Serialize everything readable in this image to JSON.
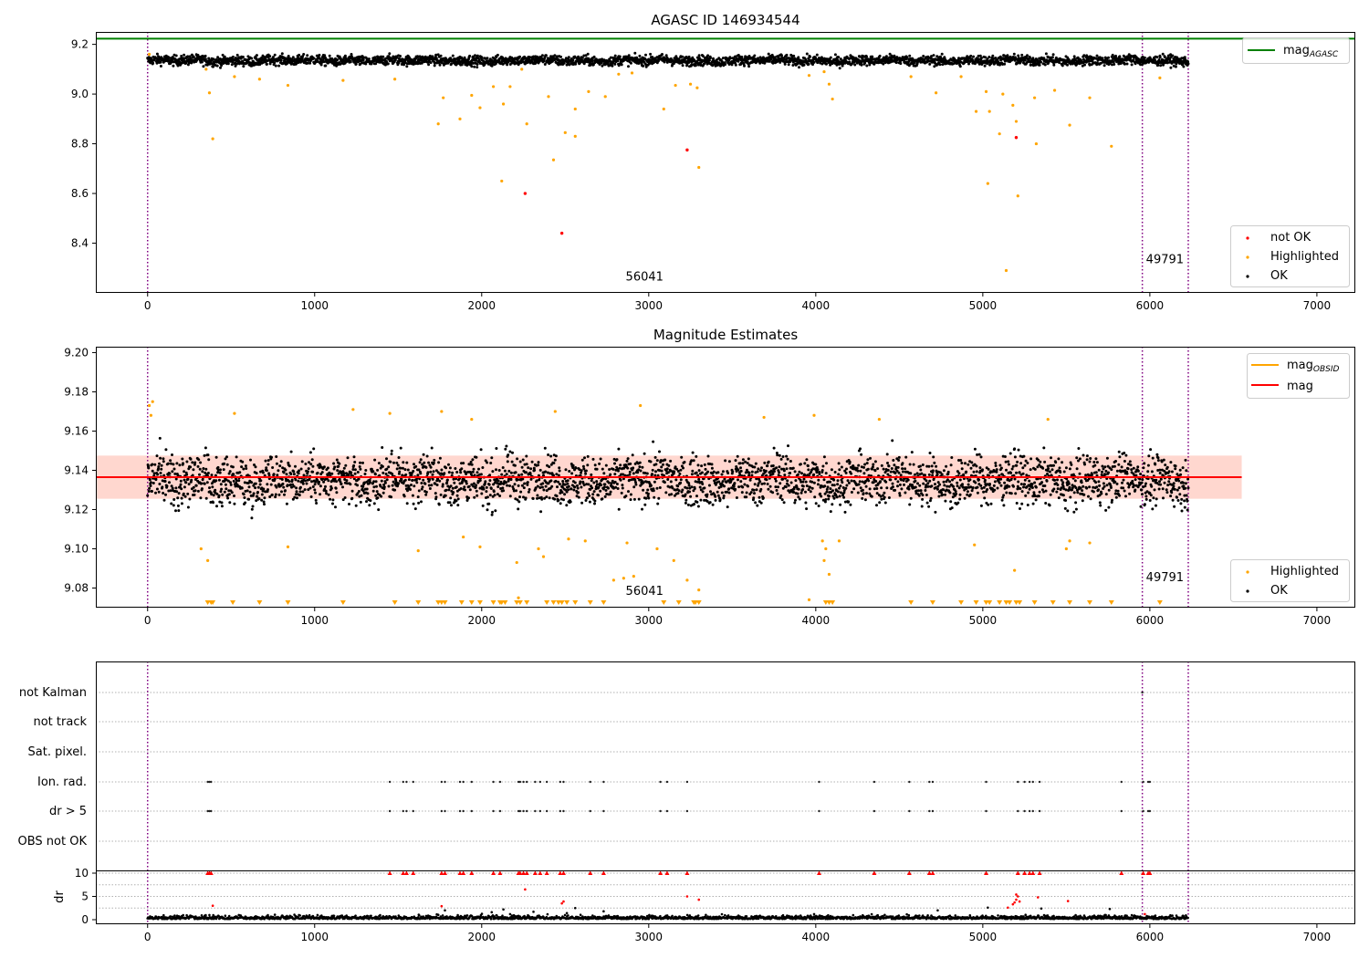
{
  "colors": {
    "ok": "#000000",
    "highlighted": "#ffa500",
    "not_ok": "#ff0000",
    "agasc_line": "#008000",
    "mean_line": "#ff0000",
    "band_fill": "#ffb6a8",
    "vline": "#800080",
    "grid": "#b0b0b0"
  },
  "chart_data": [
    {
      "type": "scatter",
      "title": "AGASC ID 146934544",
      "xlim": [
        -310,
        7230
      ],
      "ylim": [
        8.2,
        9.25
      ],
      "xticks": [
        "0",
        "1000",
        "2000",
        "3000",
        "4000",
        "5000",
        "6000",
        "7000"
      ],
      "yticks": [
        "8.4",
        "8.6",
        "8.8",
        "9.0",
        "9.2"
      ],
      "hline": {
        "name": "mag_AGASC",
        "y": 9.223
      },
      "ok_band": {
        "center": 9.135,
        "spread": 0.018,
        "x_start": 0,
        "x_end": 6230
      },
      "vlines": [
        0,
        5955,
        6230
      ],
      "annotations": [
        {
          "text": "56041",
          "x": 2975,
          "y": 8.25
        },
        {
          "text": "49791",
          "x": 6090,
          "y": 8.32
        }
      ],
      "series": [
        {
          "name": "not OK",
          "points": [
            [
              2260,
              8.6
            ],
            [
              2480,
              8.44
            ],
            [
              3230,
              8.775
            ],
            [
              5200,
              8.825
            ]
          ]
        },
        {
          "name": "Highlighted",
          "points": [
            [
              10,
              9.16
            ],
            [
              350,
              9.1
            ],
            [
              370,
              9.005
            ],
            [
              390,
              8.82
            ],
            [
              520,
              9.07
            ],
            [
              670,
              9.06
            ],
            [
              840,
              9.035
            ],
            [
              1170,
              9.055
            ],
            [
              1480,
              9.06
            ],
            [
              1740,
              8.88
            ],
            [
              1770,
              8.985
            ],
            [
              1870,
              8.9
            ],
            [
              1940,
              8.995
            ],
            [
              1990,
              8.945
            ],
            [
              2070,
              9.03
            ],
            [
              2120,
              8.65
            ],
            [
              2130,
              8.96
            ],
            [
              2170,
              9.03
            ],
            [
              2240,
              9.1
            ],
            [
              2270,
              8.88
            ],
            [
              2400,
              8.99
            ],
            [
              2430,
              8.735
            ],
            [
              2500,
              8.845
            ],
            [
              2560,
              8.83
            ],
            [
              2560,
              8.94
            ],
            [
              2640,
              9.01
            ],
            [
              2740,
              8.99
            ],
            [
              2820,
              9.08
            ],
            [
              2900,
              9.085
            ],
            [
              3090,
              8.94
            ],
            [
              3160,
              9.035
            ],
            [
              3250,
              9.04
            ],
            [
              3290,
              9.025
            ],
            [
              3300,
              8.705
            ],
            [
              3960,
              9.075
            ],
            [
              4050,
              9.09
            ],
            [
              4080,
              9.04
            ],
            [
              4100,
              8.98
            ],
            [
              4570,
              9.07
            ],
            [
              4720,
              9.005
            ],
            [
              4870,
              9.07
            ],
            [
              4960,
              8.93
            ],
            [
              5020,
              9.01
            ],
            [
              5030,
              8.64
            ],
            [
              5040,
              8.93
            ],
            [
              5100,
              8.84
            ],
            [
              5120,
              9.0
            ],
            [
              5140,
              8.29
            ],
            [
              5180,
              8.955
            ],
            [
              5200,
              8.89
            ],
            [
              5210,
              8.59
            ],
            [
              5310,
              8.985
            ],
            [
              5320,
              8.8
            ],
            [
              5430,
              9.015
            ],
            [
              5520,
              8.875
            ],
            [
              5640,
              8.985
            ],
            [
              5770,
              8.79
            ],
            [
              6060,
              9.065
            ]
          ]
        }
      ],
      "legend": {
        "position": "lower right",
        "entries": [
          "not OK",
          "Highlighted",
          "OK"
        ]
      },
      "legend_top": {
        "position": "upper right",
        "entries": [
          "mag_AGASC"
        ]
      }
    },
    {
      "type": "scatter",
      "title": "Magnitude Estimates",
      "xlim": [
        -310,
        7230
      ],
      "ylim": [
        9.07,
        9.203
      ],
      "xticks": [
        "0",
        "1000",
        "2000",
        "3000",
        "4000",
        "5000",
        "6000",
        "7000"
      ],
      "yticks": [
        "9.08",
        "9.10",
        "9.12",
        "9.14",
        "9.16",
        "9.18",
        "9.20"
      ],
      "mean": 9.1365,
      "band": [
        9.1255,
        9.1475
      ],
      "band_x": [
        -310,
        6550
      ],
      "ok_band": {
        "center": 9.135,
        "spread": 0.011,
        "x_start": 0,
        "x_end": 6230
      },
      "vlines": [
        0,
        5955,
        6230
      ],
      "annotations": [
        {
          "text": "56041",
          "x": 2975,
          "y": 9.0765
        },
        {
          "text": "49791",
          "x": 6090,
          "y": 9.0835
        }
      ],
      "series": [
        {
          "name": "Highlighted",
          "points": [
            [
              10,
              9.173
            ],
            [
              20,
              9.168
            ],
            [
              30,
              9.175
            ],
            [
              320,
              9.1
            ],
            [
              360,
              9.094
            ],
            [
              520,
              9.169
            ],
            [
              840,
              9.101
            ],
            [
              1230,
              9.171
            ],
            [
              1450,
              9.169
            ],
            [
              1620,
              9.099
            ],
            [
              1760,
              9.17
            ],
            [
              1890,
              9.106
            ],
            [
              1940,
              9.166
            ],
            [
              1990,
              9.101
            ],
            [
              2210,
              9.093
            ],
            [
              2220,
              9.075
            ],
            [
              2340,
              9.1
            ],
            [
              2370,
              9.096
            ],
            [
              2440,
              9.17
            ],
            [
              2520,
              9.105
            ],
            [
              2620,
              9.104
            ],
            [
              2790,
              9.084
            ],
            [
              2850,
              9.085
            ],
            [
              2870,
              9.103
            ],
            [
              2910,
              9.086
            ],
            [
              2950,
              9.173
            ],
            [
              3050,
              9.1
            ],
            [
              3150,
              9.094
            ],
            [
              3230,
              9.084
            ],
            [
              3300,
              9.079
            ],
            [
              3690,
              9.167
            ],
            [
              3960,
              9.074
            ],
            [
              3990,
              9.168
            ],
            [
              4040,
              9.104
            ],
            [
              4050,
              9.094
            ],
            [
              4060,
              9.1
            ],
            [
              4080,
              9.087
            ],
            [
              4140,
              9.104
            ],
            [
              4380,
              9.166
            ],
            [
              4950,
              9.102
            ],
            [
              5190,
              9.089
            ],
            [
              5390,
              9.166
            ],
            [
              5500,
              9.1
            ],
            [
              5520,
              9.104
            ],
            [
              5640,
              9.103
            ]
          ]
        },
        {
          "name": "Highlighted (clipped)",
          "x": [
            360,
            380,
            390,
            510,
            670,
            840,
            1170,
            1480,
            1620,
            1740,
            1760,
            1780,
            1880,
            1940,
            1990,
            2070,
            2110,
            2120,
            2140,
            2210,
            2230,
            2270,
            2390,
            2430,
            2460,
            2480,
            2510,
            2560,
            2650,
            2730,
            3090,
            3180,
            3270,
            3280,
            3300,
            4060,
            4080,
            4100,
            4570,
            4700,
            4870,
            4960,
            5020,
            5040,
            5100,
            5140,
            5160,
            5200,
            5220,
            5310,
            5420,
            5520,
            5640,
            5770,
            6060
          ]
        }
      ],
      "legend": {
        "position": "lower right",
        "entries": [
          "Highlighted",
          "OK"
        ]
      },
      "legend_top": {
        "position": "upper right",
        "entries": [
          "mag_OBSID",
          "mag"
        ]
      }
    },
    {
      "type": "scatter",
      "title": "",
      "xlim": [
        -310,
        7230
      ],
      "ylim": [
        -0.5,
        10.5
      ],
      "xticks": [
        "0",
        "1000",
        "2000",
        "3000",
        "4000",
        "5000",
        "6000",
        "7000"
      ],
      "yticks": [
        "0",
        "5",
        "10"
      ],
      "ylabel": "dr",
      "flag_labels": [
        "not Kalman",
        "not track",
        "Sat. pixel.",
        "Ion. rad.",
        "dr > 5",
        "OBS not OK"
      ],
      "flag_points": [
        {
          "flag": "Ion. rad.",
          "x": [
            360,
            370,
            380,
            1450,
            1530,
            1550,
            1590,
            1760,
            1780,
            1870,
            1890,
            1940,
            2070,
            2110,
            2220,
            2230,
            2250,
            2270,
            2320,
            2350,
            2390,
            2470,
            2490,
            2650,
            2730,
            3070,
            3110,
            3230,
            4020,
            4350,
            4560,
            4680,
            4700,
            5020,
            5210,
            5250,
            5280,
            5300,
            5340,
            5830,
            5960,
            5990,
            6000
          ]
        },
        {
          "flag": "dr > 5",
          "x": [
            360,
            370,
            380,
            1450,
            1530,
            1550,
            1590,
            1760,
            1780,
            1870,
            1890,
            1940,
            2070,
            2110,
            2220,
            2230,
            2250,
            2270,
            2320,
            2350,
            2390,
            2470,
            2490,
            2650,
            2730,
            3070,
            3110,
            3230,
            4020,
            4350,
            4560,
            4680,
            4700,
            5020,
            5210,
            5250,
            5280,
            5300,
            5340,
            5830,
            5960,
            5990,
            6000
          ]
        },
        {
          "flag": "not Kalman",
          "x": [
            5955
          ]
        }
      ],
      "dr_series": [
        {
          "name": "dr clipped",
          "x": [
            360,
            370,
            380,
            1450,
            1530,
            1550,
            1590,
            1760,
            1780,
            1870,
            1890,
            1940,
            2070,
            2110,
            2220,
            2230,
            2250,
            2270,
            2320,
            2350,
            2390,
            2470,
            2490,
            2650,
            2730,
            3070,
            3110,
            3230,
            4020,
            4350,
            4560,
            4680,
            4700,
            5020,
            5210,
            5250,
            5280,
            5300,
            5340,
            5830,
            5960,
            5990,
            6000
          ]
        },
        {
          "name": "dr red",
          "points": [
            [
              390,
              3.0
            ],
            [
              1760,
              2.9
            ],
            [
              2260,
              6.5
            ],
            [
              2480,
              3.5
            ],
            [
              2490,
              3.9
            ],
            [
              3230,
              5.0
            ],
            [
              3300,
              4.3
            ],
            [
              5150,
              2.6
            ],
            [
              5180,
              3.3
            ],
            [
              5190,
              3.7
            ],
            [
              5200,
              4.3
            ],
            [
              5210,
              5.0
            ],
            [
              5200,
              5.4
            ],
            [
              5220,
              3.9
            ],
            [
              5330,
              4.8
            ],
            [
              5510,
              4.0
            ],
            [
              5970,
              1.2
            ]
          ]
        },
        {
          "name": "dr highlighted",
          "points": [
            [
              370,
              1.0
            ],
            [
              1780,
              2.0
            ],
            [
              2060,
              1.6
            ],
            [
              2130,
              2.2
            ],
            [
              2170,
              1.2
            ],
            [
              2310,
              1.7
            ],
            [
              2510,
              1.4
            ],
            [
              2560,
              2.5
            ],
            [
              2730,
              1.8
            ],
            [
              3990,
              1.2
            ],
            [
              4730,
              2.0
            ],
            [
              5030,
              2.6
            ],
            [
              5350,
              2.4
            ],
            [
              5760,
              2.3
            ]
          ]
        }
      ],
      "vlines": [
        0,
        5955,
        6230
      ]
    }
  ]
}
